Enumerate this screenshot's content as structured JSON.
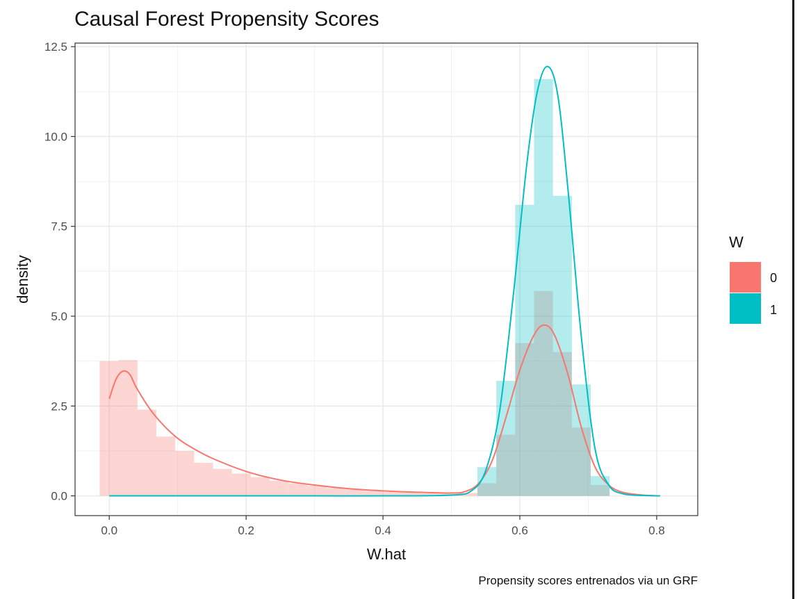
{
  "chart_data": {
    "type": "histogram-density",
    "title": "Causal Forest Propensity Scores",
    "xlabel": "W.hat",
    "ylabel": "density",
    "caption": "Propensity scores entrenados via un GRF",
    "xlim": [
      -0.05,
      0.86
    ],
    "ylim": [
      -0.55,
      12.6
    ],
    "x_ticks": [
      0.0,
      0.2,
      0.4,
      0.6,
      0.8
    ],
    "x_tick_labels": [
      "0.0",
      "0.2",
      "0.4",
      "0.6",
      "0.8"
    ],
    "y_ticks": [
      0.0,
      2.5,
      5.0,
      7.5,
      10.0,
      12.5
    ],
    "y_tick_labels": [
      "0.0",
      "2.5",
      "5.0",
      "7.5",
      "10.0",
      "12.5"
    ],
    "grid": true,
    "legend": {
      "title": "W",
      "position": "right",
      "entries": [
        {
          "label": "0",
          "color": "#F8766D"
        },
        {
          "label": "1",
          "color": "#00BFC4"
        }
      ]
    },
    "bin_width": 0.0276,
    "series": [
      {
        "name": "0",
        "color": "#F8766D",
        "hist_bin_starts": [
          -0.014,
          0.0136,
          0.0412,
          0.0688,
          0.0964,
          0.124,
          0.1516,
          0.1792,
          0.2068,
          0.2344,
          0.262,
          0.2896,
          0.3172,
          0.3448,
          0.3724,
          0.4,
          0.4276,
          0.4552,
          0.4828,
          0.5104,
          0.538,
          0.5656,
          0.5932,
          0.6208,
          0.6484,
          0.676,
          0.7036
        ],
        "hist_density": [
          3.75,
          3.78,
          2.4,
          1.65,
          1.25,
          0.92,
          0.75,
          0.62,
          0.52,
          0.42,
          0.35,
          0.28,
          0.22,
          0.18,
          0.14,
          0.11,
          0.09,
          0.07,
          0.06,
          0.08,
          0.35,
          1.7,
          4.25,
          5.7,
          4.0,
          1.9,
          0.3
        ],
        "density_x": [
          0.0,
          0.01,
          0.02,
          0.03,
          0.04,
          0.06,
          0.08,
          0.1,
          0.12,
          0.15,
          0.2,
          0.25,
          0.3,
          0.35,
          0.4,
          0.45,
          0.5,
          0.52,
          0.54,
          0.56,
          0.58,
          0.6,
          0.62,
          0.635,
          0.65,
          0.67,
          0.69,
          0.71,
          0.73,
          0.75,
          0.78,
          0.805
        ],
        "density_y": [
          2.7,
          3.25,
          3.47,
          3.38,
          3.0,
          2.4,
          1.95,
          1.6,
          1.35,
          1.05,
          0.68,
          0.44,
          0.3,
          0.2,
          0.14,
          0.1,
          0.08,
          0.12,
          0.35,
          1.0,
          2.2,
          3.5,
          4.45,
          4.75,
          4.5,
          3.4,
          1.9,
          0.8,
          0.3,
          0.1,
          0.02,
          0.0
        ]
      },
      {
        "name": "1",
        "color": "#00BFC4",
        "hist_bin_starts": [
          0.538,
          0.5656,
          0.5932,
          0.6208,
          0.6484,
          0.676,
          0.7036
        ],
        "hist_density": [
          0.8,
          3.2,
          8.1,
          11.6,
          8.35,
          3.1,
          0.55
        ],
        "density_x": [
          0.0,
          0.1,
          0.2,
          0.3,
          0.4,
          0.5,
          0.53,
          0.55,
          0.57,
          0.59,
          0.61,
          0.625,
          0.64,
          0.655,
          0.67,
          0.69,
          0.71,
          0.73,
          0.75,
          0.78,
          0.805
        ],
        "density_y": [
          0.0,
          0.0,
          0.0,
          0.0,
          0.0,
          0.02,
          0.15,
          0.7,
          2.3,
          5.5,
          9.2,
          11.2,
          11.95,
          11.2,
          8.6,
          4.4,
          1.3,
          0.3,
          0.06,
          0.01,
          0.0
        ]
      }
    ]
  }
}
